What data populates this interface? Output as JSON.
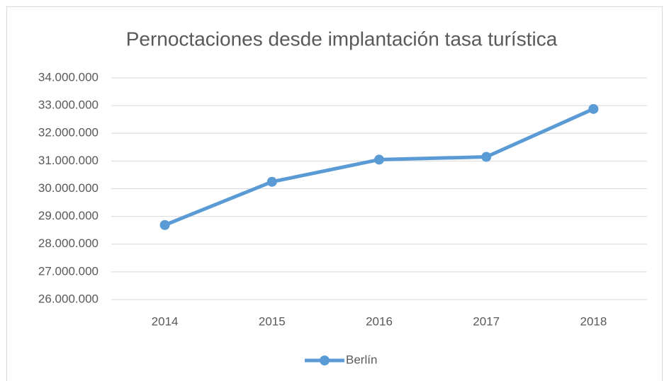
{
  "chart_data": {
    "type": "line",
    "title": "Pernoctaciones desde implantación tasa turística",
    "categories": [
      "2014",
      "2015",
      "2016",
      "2017",
      "2018"
    ],
    "series": [
      {
        "name": "Berlín",
        "color": "#5b9bd5",
        "values": [
          28690000,
          30250000,
          31050000,
          31150000,
          32880000
        ]
      }
    ],
    "ylim": [
      26000000,
      34000000
    ],
    "yticks": [
      {
        "value": 26000000,
        "label": "26.000.000"
      },
      {
        "value": 27000000,
        "label": "27.000.000"
      },
      {
        "value": 28000000,
        "label": "28.000.000"
      },
      {
        "value": 29000000,
        "label": "29.000.000"
      },
      {
        "value": 30000000,
        "label": "30.000.000"
      },
      {
        "value": 31000000,
        "label": "31.000.000"
      },
      {
        "value": 32000000,
        "label": "32.000.000"
      },
      {
        "value": 33000000,
        "label": "33.000.000"
      },
      {
        "value": 34000000,
        "label": "34.000.000"
      }
    ],
    "grid": true,
    "legend": "bottom"
  }
}
